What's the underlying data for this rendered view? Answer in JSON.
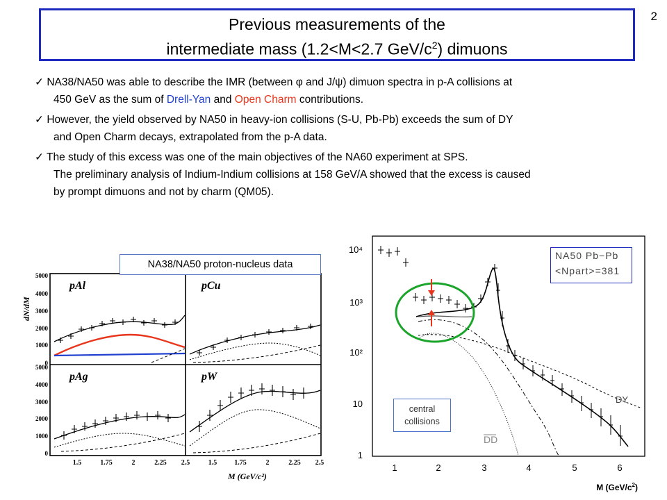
{
  "slide_number": "2",
  "title": {
    "line1": "Previous measurements of the",
    "line2_prefix": "intermediate mass (1.2<M<2.7 GeV/c",
    "line2_sup": "2",
    "line2_suffix": ") dimuons"
  },
  "bullets": {
    "b1": {
      "p1": "NA38/NA50 was able to describe the IMR (between φ and J/ψ) dimuon spectra in p-A collisions at",
      "p2": "450 GeV as the sum of ",
      "dy": "Drell-Yan",
      "and": " and ",
      "oc": "Open Charm",
      "p3": " contributions."
    },
    "b2": {
      "l1": "However, the yield observed by NA50 in heavy-ion collisions (S-U, Pb-Pb) exceeds the sum of DY",
      "l2": "and Open Charm decays, extrapolated from the p-A data."
    },
    "b3": {
      "l1": "The study of this excess was one of the main objectives of the NA60 experiment at SPS.",
      "l2": "The preliminary analysis of Indium-Indium collisions at 158 GeV/A showed that the excess is caused",
      "l3": "by prompt dimuons and not by charm (QM05)."
    },
    "check": "✓"
  },
  "left_figure": {
    "caption": "NA38/NA50 proton-nucleus data",
    "ylabel": "dN/dM",
    "xlabel": "M (GeV/c²)",
    "panels": [
      "pAl",
      "pCu",
      "pAg",
      "pW"
    ],
    "yticks": [
      "5000",
      "4000",
      "3000",
      "2000",
      "1000",
      "0"
    ],
    "xticks": [
      "1.5",
      "1.75",
      "2",
      "2.25",
      "2.5"
    ]
  },
  "right_figure": {
    "legend_line1": "NA50 Pb−Pb",
    "legend_line2": "<Npart>=381",
    "central_label": "central collisions",
    "dd_label": "DD",
    "dy_label": "DY",
    "yticks": [
      "10⁴",
      "10³",
      "10²",
      "10",
      "1"
    ],
    "xticks": [
      "1",
      "2",
      "3",
      "4",
      "5",
      "6"
    ],
    "xlabel_prefix": "M (GeV/c",
    "xlabel_sup": "2",
    "xlabel_suffix": ")"
  },
  "colors": {
    "title_border": "#1f2bbf",
    "drell_yan": "#1f3fcf",
    "open_charm": "#e8361c",
    "highlight": "#1aa52a"
  }
}
